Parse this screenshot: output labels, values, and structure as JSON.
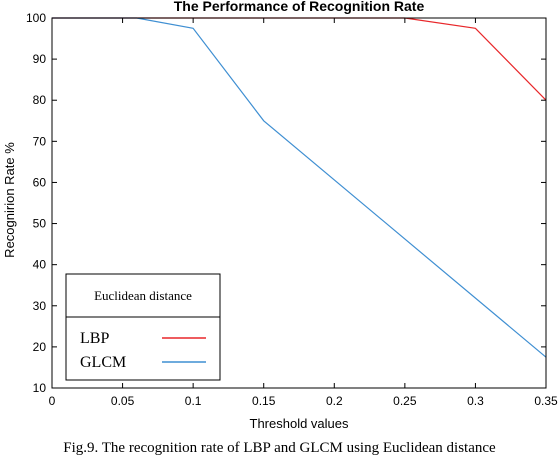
{
  "chart_data": {
    "type": "line",
    "title": "The Performance of Recognition Rate",
    "xlabel": "Threshold values",
    "ylabel": "Recognirion Rate %",
    "xlim": [
      0,
      0.35
    ],
    "ylim": [
      10,
      100
    ],
    "xticks": [
      "0",
      "0.05",
      "0.1",
      "0.15",
      "0.2",
      "0.25",
      "0.3",
      "0.35"
    ],
    "yticks": [
      "10",
      "20",
      "30",
      "40",
      "50",
      "60",
      "70",
      "80",
      "90",
      "100"
    ],
    "legend_title": "Euclidean distance",
    "legend_position": "bottom-left",
    "series": [
      {
        "name": "LBP",
        "color": "#e8272a",
        "x": [
          0,
          0.05,
          0.1,
          0.15,
          0.2,
          0.25,
          0.3,
          0.35
        ],
        "y": [
          100,
          100,
          100,
          100,
          100,
          100,
          97.5,
          80
        ]
      },
      {
        "name": "GLCM",
        "color": "#3f8fd2",
        "x": [
          0,
          0.06,
          0.1,
          0.15,
          0.35
        ],
        "y": [
          100,
          100,
          97.5,
          75,
          17.5
        ]
      }
    ]
  },
  "caption": "Fig.9. The recognition rate of LBP and GLCM using Euclidean distance"
}
